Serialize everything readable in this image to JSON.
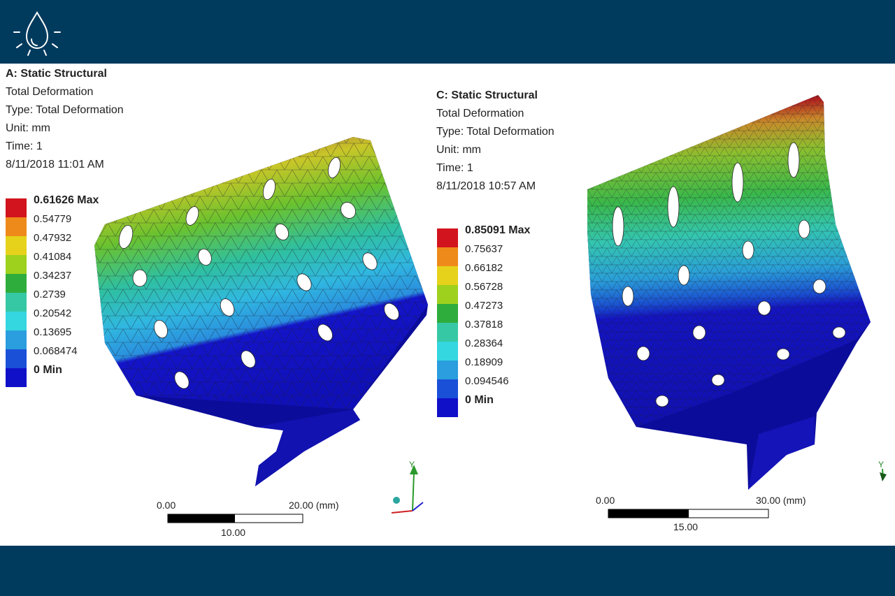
{
  "panels": [
    {
      "title": "A: Static Structural",
      "lines": [
        "Total Deformation",
        "Type: Total Deformation",
        "Unit: mm",
        "Time: 1",
        "8/11/2018 11:01 AM"
      ],
      "legend": [
        "0.61626 Max",
        "0.54779",
        "0.47932",
        "0.41084",
        "0.34237",
        "0.2739",
        "0.20542",
        "0.13695",
        "0.068474",
        "0 Min"
      ],
      "scale": {
        "left": "0.00",
        "right": "20.00 (mm)",
        "mid": "10.00"
      }
    },
    {
      "title": "C: Static Structural",
      "lines": [
        "Total Deformation",
        "Type: Total Deformation",
        "Unit: mm",
        "Time: 1",
        "8/11/2018 10:57 AM"
      ],
      "legend": [
        "0.85091 Max",
        "0.75637",
        "0.66182",
        "0.56728",
        "0.47273",
        "0.37818",
        "0.28364",
        "0.18909",
        "0.094546",
        "0 Min"
      ],
      "scale": {
        "left": "0.00",
        "right": "30.00 (mm)",
        "mid": "15.00"
      }
    }
  ],
  "triad": {
    "axis_y": "Y"
  },
  "legend_colors": [
    "#d2141e",
    "#ee8a1a",
    "#e6d21a",
    "#9ed11e",
    "#2fad3c",
    "#36c8a5",
    "#34d6e0",
    "#2a9ede",
    "#1a4fd8",
    "#1010c8"
  ]
}
